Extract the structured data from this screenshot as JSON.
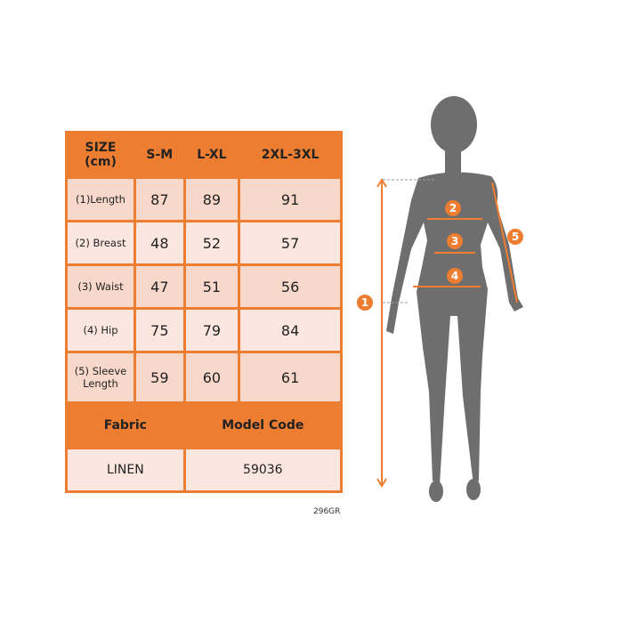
{
  "table": {
    "header": [
      "SIZE\n(cm)",
      "S-M",
      "L-XL",
      "2XL-3XL"
    ],
    "header_line1": "SIZE",
    "header_line2": "(cm)",
    "rows": [
      {
        "label": "(1)Length",
        "values": [
          "87",
          "89",
          "91"
        ]
      },
      {
        "label": "(2) Breast",
        "values": [
          "48",
          "52",
          "57"
        ]
      },
      {
        "label": "(3) Waist",
        "values": [
          "47",
          "51",
          "56"
        ]
      },
      {
        "label": "(4) Hip",
        "values": [
          "75",
          "79",
          "84"
        ]
      },
      {
        "label": "(5) Sleeve Length",
        "label_line1": "(5) Sleeve",
        "label_line2": "Length",
        "values": [
          "59",
          "60",
          "61"
        ]
      }
    ],
    "fabric_label": "Fabric",
    "model_code_label": "Model Code",
    "fabric_value": "LINEN",
    "model_code_value": "59036"
  },
  "product_code": "296GR",
  "figure": {
    "markers": [
      "1",
      "2",
      "3",
      "4",
      "5"
    ],
    "accent_color": "#ED7D31",
    "silhouette_color": "#6E6E6E"
  }
}
